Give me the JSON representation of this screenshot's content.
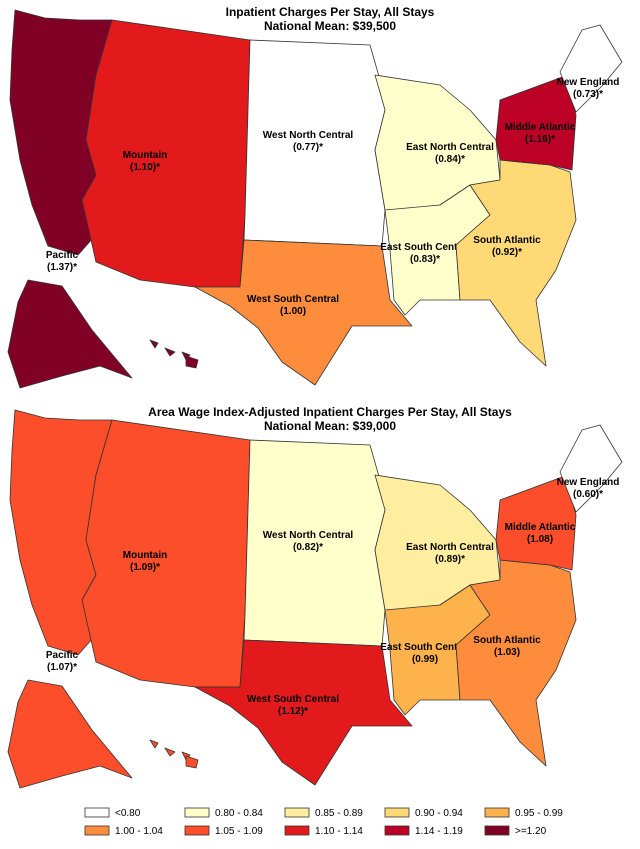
{
  "maps": [
    {
      "title": "Inpatient Charges Per Stay, All  Stays",
      "subtitle": "National Mean: $39,500",
      "regions": [
        {
          "name": "Pacific",
          "value": "(1.37)*",
          "color": "#800026"
        },
        {
          "name": "Mountain",
          "value": "(1.10)*",
          "color": "#e31a1c"
        },
        {
          "name": "West North Central",
          "value": "(0.77)*",
          "color": "#ffffff"
        },
        {
          "name": "West South Central",
          "value": "(1.00)",
          "color": "#fd8d3c"
        },
        {
          "name": "East North Central",
          "value": "(0.84)*",
          "color": "#ffffcc"
        },
        {
          "name": "East South Central",
          "value": "(0.83)*",
          "color": "#ffffcc"
        },
        {
          "name": "South Atlantic",
          "value": "(0.92)*",
          "color": "#fed976"
        },
        {
          "name": "Middle Atlantic",
          "value": "(1.16)*",
          "color": "#bd0026"
        },
        {
          "name": "New England",
          "value": "(0.73)*",
          "color": "#ffffff"
        }
      ]
    },
    {
      "title": "Area Wage Index-Adjusted Inpatient Charges Per Stay, All  Stays",
      "subtitle": "National Mean: $39,000",
      "regions": [
        {
          "name": "Pacific",
          "value": "(1.07)*",
          "color": "#fc4e2a"
        },
        {
          "name": "Mountain",
          "value": "(1.09)*",
          "color": "#fc4e2a"
        },
        {
          "name": "West North Central",
          "value": "(0.82)*",
          "color": "#ffffcc"
        },
        {
          "name": "West South Central",
          "value": "(1.12)*",
          "color": "#e31a1c"
        },
        {
          "name": "East North Central",
          "value": "(0.89)*",
          "color": "#ffeda0"
        },
        {
          "name": "East South Central",
          "value": "(0.99)",
          "color": "#feb24c"
        },
        {
          "name": "South Atlantic",
          "value": "(1.03)",
          "color": "#fd8d3c"
        },
        {
          "name": "Middle Atlantic",
          "value": "(1.08)",
          "color": "#fc4e2a"
        },
        {
          "name": "New England",
          "value": "(0.60)*",
          "color": "#ffffff"
        }
      ]
    }
  ],
  "legend": [
    {
      "label": "<0.80",
      "color": "#ffffff"
    },
    {
      "label": "0.80 - 0.84",
      "color": "#ffffcc"
    },
    {
      "label": "0.85 - 0.89",
      "color": "#ffeda0"
    },
    {
      "label": "0.90 - 0.94",
      "color": "#fed976"
    },
    {
      "label": "0.95 - 0.99",
      "color": "#feb24c"
    },
    {
      "label": "1.00 - 1.04",
      "color": "#fd8d3c"
    },
    {
      "label": "1.05 - 1.09",
      "color": "#fc4e2a"
    },
    {
      "label": "1.10 - 1.14",
      "color": "#e31a1c"
    },
    {
      "label": "1.14 - 1.19",
      "color": "#bd0026"
    },
    {
      "label": ">=1.20",
      "color": "#800026"
    }
  ]
}
